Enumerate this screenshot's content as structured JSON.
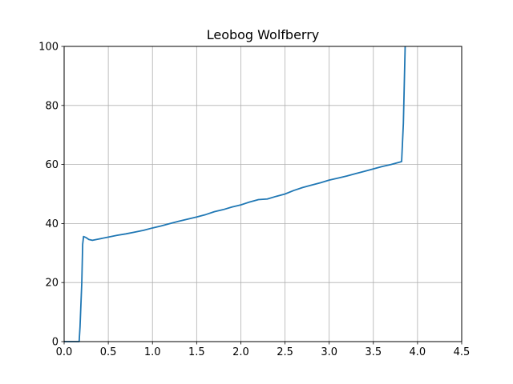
{
  "chart_data": {
    "type": "line",
    "title": "Leobog Wolfberry",
    "xlabel": "",
    "ylabel": "",
    "xlim": [
      0.0,
      4.5
    ],
    "ylim": [
      0,
      100
    ],
    "x_ticks": [
      0.0,
      0.5,
      1.0,
      1.5,
      2.0,
      2.5,
      3.0,
      3.5,
      4.0,
      4.5
    ],
    "x_tick_labels": [
      "0.0",
      "0.5",
      "1.0",
      "1.5",
      "2.0",
      "2.5",
      "3.0",
      "3.5",
      "4.0",
      "4.5"
    ],
    "y_ticks": [
      0,
      20,
      40,
      60,
      80,
      100
    ],
    "y_tick_labels": [
      "0",
      "20",
      "40",
      "60",
      "80",
      "100"
    ],
    "grid": true,
    "series": [
      {
        "color": "#1f77b4",
        "points": [
          [
            0.0,
            0.0
          ],
          [
            0.17,
            0.0
          ],
          [
            0.18,
            5.0
          ],
          [
            0.2,
            20.0
          ],
          [
            0.21,
            33.0
          ],
          [
            0.22,
            35.6
          ],
          [
            0.25,
            35.2
          ],
          [
            0.28,
            34.6
          ],
          [
            0.32,
            34.3
          ],
          [
            0.4,
            34.8
          ],
          [
            0.5,
            35.4
          ],
          [
            0.6,
            36.0
          ],
          [
            0.7,
            36.5
          ],
          [
            0.8,
            37.1
          ],
          [
            0.9,
            37.7
          ],
          [
            1.0,
            38.5
          ],
          [
            1.1,
            39.2
          ],
          [
            1.2,
            40.0
          ],
          [
            1.3,
            40.8
          ],
          [
            1.4,
            41.5
          ],
          [
            1.5,
            42.2
          ],
          [
            1.6,
            43.0
          ],
          [
            1.7,
            44.0
          ],
          [
            1.8,
            44.7
          ],
          [
            1.9,
            45.6
          ],
          [
            2.0,
            46.3
          ],
          [
            2.1,
            47.3
          ],
          [
            2.2,
            48.1
          ],
          [
            2.3,
            48.3
          ],
          [
            2.4,
            49.2
          ],
          [
            2.5,
            50.0
          ],
          [
            2.6,
            51.2
          ],
          [
            2.7,
            52.2
          ],
          [
            2.8,
            53.0
          ],
          [
            2.9,
            53.8
          ],
          [
            3.0,
            54.7
          ],
          [
            3.1,
            55.4
          ],
          [
            3.2,
            56.1
          ],
          [
            3.3,
            56.9
          ],
          [
            3.4,
            57.7
          ],
          [
            3.5,
            58.5
          ],
          [
            3.6,
            59.3
          ],
          [
            3.7,
            60.0
          ],
          [
            3.8,
            60.8
          ],
          [
            3.82,
            61.0
          ],
          [
            3.84,
            74.0
          ],
          [
            3.86,
            100.0
          ]
        ]
      }
    ]
  }
}
